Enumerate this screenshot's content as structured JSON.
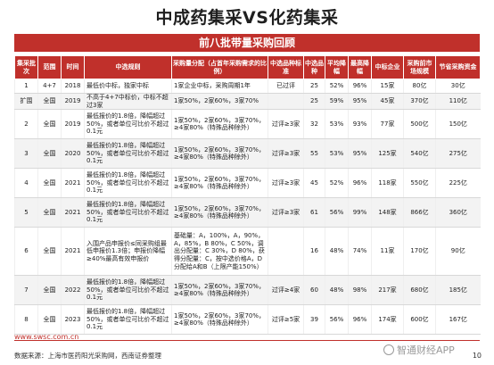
{
  "page": {
    "title": "中成药集采VS化药集采",
    "subtitle": "前八批带量采购回顾",
    "logo": "www.swsc.com.cn",
    "source": "数据来源：上海市医药阳光采购网，西南证券整理",
    "page_number": "10",
    "watermark": "智通财经APP"
  },
  "table": {
    "headers": [
      "集采批次",
      "范围",
      "时间",
      "中选规则",
      "采购量分配（占首年采购需求的比例）",
      "中选品种标准",
      "中选品种",
      "平均降幅",
      "最高降幅",
      "中标企业",
      "采购前市场规模",
      "节省采购资金"
    ],
    "rows": [
      [
        "1",
        "4+7",
        "2018",
        "最低价中标，独家中标",
        "1家企业中标，采购周期1年",
        "已过评",
        "25",
        "52%",
        "96%",
        "15家",
        "80亿",
        "30亿"
      ],
      [
        "扩围",
        "全国",
        "2019",
        "不高于4+7中标价，中标不超过3家",
        "1家50%，2家60%，3家70%",
        "",
        "25",
        "59%",
        "95%",
        "45家",
        "370亿",
        "110亿"
      ],
      [
        "2",
        "全国",
        "2019",
        "最低报价的1.8倍，降幅超过50%，或者单位可比价不超过0.1元",
        "1家50%，2家60%，3家70%，≥4家80%（特殊品种除外）",
        "过评≥3家",
        "32",
        "53%",
        "93%",
        "77家",
        "500亿",
        "150亿"
      ],
      [
        "3",
        "全国",
        "2020",
        "最低报价的1.8倍，降幅超过50%，或者单位可比价不超过0.1元",
        "1家50%，2家60%，3家70%，≥4家80%（特殊品种除外）",
        "过评≥3家",
        "55",
        "53%",
        "95%",
        "125家",
        "540亿",
        "275亿"
      ],
      [
        "4",
        "全国",
        "2021",
        "最低报价的1.8倍，降幅超过50%，或者单位可比价不超过0.1元",
        "1家50%，2家60%，3家70%，≥4家80%（特殊品种除外）",
        "过评≥3家",
        "45",
        "52%",
        "96%",
        "118家",
        "550亿",
        "225亿"
      ],
      [
        "5",
        "全国",
        "2021",
        "最低报价的1.8倍，降幅超过50%，或者单位可比价不超过0.1元",
        "1家50%，2家60%，3家70%，≥4家80%（特殊品种除外）",
        "过评≥3家",
        "61",
        "56%",
        "99%",
        "148家",
        "866亿",
        "360亿"
      ],
      [
        "6",
        "全国",
        "2021",
        "入围产品申报价≤同采购组最低申报价1.3倍；申报价降幅≥40%最高有效申报价",
        "基础量：A，100%，A，90%，A，85%，B 80%，C 50%，调出分配量：C 30%，D 80%，获得分配量：C，按中选价格A，D分配给A和B（上限产能150%）",
        "",
        "16",
        "48%",
        "74%",
        "11家",
        "170亿",
        "90亿"
      ],
      [
        "7",
        "全国",
        "2022",
        "最低报价的1.8倍，降幅超过50%，或者单位可比价不超过0.1元",
        "1家50%，2家60%，3家70%，≥4家80%（特殊品种除外）",
        "过评≥4家",
        "60",
        "48%",
        "98%",
        "217家",
        "680亿",
        "185亿"
      ],
      [
        "8",
        "全国",
        "2023",
        "最低报价的1.8倍，降幅超过50%，或者单位可比价不超过0.1元",
        "1家50%，2家60%，3家70%，≥4家80%（特殊品种除外）",
        "过评≥5家",
        "39",
        "56%",
        "96%",
        "174家",
        "600亿",
        "167亿"
      ]
    ]
  }
}
